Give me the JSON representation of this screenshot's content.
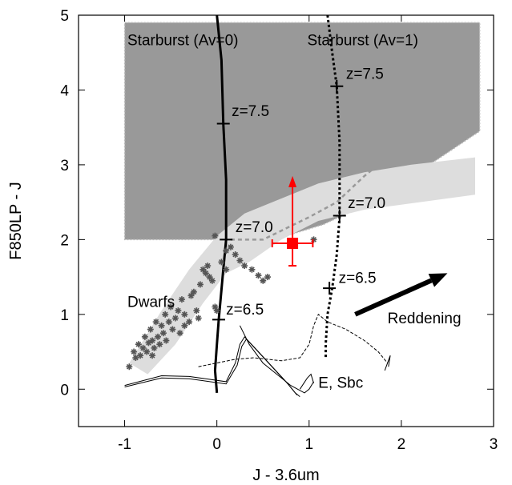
{
  "chart_data": {
    "type": "scatter",
    "xlabel": "J - 3.6um",
    "ylabel": "F850LP - J",
    "xlim": [
      -1.5,
      3.0
    ],
    "ylim": [
      -0.5,
      5.0
    ],
    "xticks": [
      -1,
      0,
      1,
      2,
      3
    ],
    "yticks": [
      0,
      1,
      2,
      3,
      4,
      5
    ],
    "grid": false,
    "regions": [
      {
        "name": "starburst-selection-region",
        "color": "#999999",
        "polygon": [
          [
            -1.0,
            4.9
          ],
          [
            2.85,
            4.9
          ],
          [
            2.85,
            3.45
          ],
          [
            2.0,
            2.75
          ],
          [
            1.5,
            2.4
          ],
          [
            1.15,
            2.2
          ],
          [
            0.75,
            2.05
          ],
          [
            0.45,
            2.0
          ],
          [
            -1.0,
            2.0
          ]
        ]
      },
      {
        "name": "dwarf-locus-band",
        "color": "#dddddd",
        "polygon": [
          [
            -0.95,
            0.35
          ],
          [
            -0.6,
            1.05
          ],
          [
            -0.3,
            1.6
          ],
          [
            0.0,
            2.05
          ],
          [
            0.3,
            2.35
          ],
          [
            0.7,
            2.55
          ],
          [
            1.1,
            2.75
          ],
          [
            1.6,
            2.9
          ],
          [
            2.1,
            3.0
          ],
          [
            2.8,
            3.1
          ],
          [
            2.8,
            2.6
          ],
          [
            2.2,
            2.5
          ],
          [
            1.6,
            2.4
          ],
          [
            1.1,
            2.25
          ],
          [
            0.7,
            2.0
          ],
          [
            0.35,
            1.7
          ],
          [
            0.1,
            1.55
          ],
          [
            -0.15,
            1.15
          ],
          [
            -0.45,
            0.6
          ],
          [
            -0.75,
            0.2
          ]
        ]
      }
    ],
    "series": [
      {
        "name": "Starburst (Av=0)",
        "style": "solid",
        "color": "#000000",
        "points": [
          [
            0.0,
            5.0
          ],
          [
            0.05,
            4.4
          ],
          [
            0.07,
            3.55
          ],
          [
            0.1,
            2.8
          ],
          [
            0.1,
            2.0
          ],
          [
            0.07,
            1.6
          ],
          [
            0.04,
            1.2
          ],
          [
            0.02,
            0.93
          ],
          [
            0.0,
            0.6
          ],
          [
            -0.02,
            0.25
          ],
          [
            0.0,
            -0.05
          ]
        ],
        "markers": [
          {
            "z": "z=7.5",
            "x": 0.07,
            "y": 3.55
          },
          {
            "z": "z=7.0",
            "x": 0.1,
            "y": 2.0
          },
          {
            "z": "z=6.5",
            "x": 0.02,
            "y": 0.93
          }
        ]
      },
      {
        "name": "Starburst (Av=1)",
        "style": "dotted",
        "color": "#000000",
        "points": [
          [
            1.2,
            5.0
          ],
          [
            1.25,
            4.5
          ],
          [
            1.3,
            4.05
          ],
          [
            1.33,
            3.3
          ],
          [
            1.33,
            2.3
          ],
          [
            1.3,
            1.8
          ],
          [
            1.25,
            1.35
          ],
          [
            1.2,
            1.0
          ],
          [
            1.18,
            0.6
          ],
          [
            1.18,
            0.4
          ]
        ],
        "markers": [
          {
            "z": "z=7.5",
            "x": 1.3,
            "y": 4.05
          },
          {
            "z": "z=7.0",
            "x": 1.33,
            "y": 2.32
          },
          {
            "z": "z=6.5",
            "x": 1.22,
            "y": 1.35
          }
        ]
      },
      {
        "name": "E, Sbc",
        "style": "thin",
        "color": "#000000",
        "tracks": [
          [
            [
              -1.0,
              0.05
            ],
            [
              -0.6,
              0.18
            ],
            [
              -0.3,
              0.17
            ],
            [
              0.1,
              0.1
            ],
            [
              0.2,
              0.35
            ],
            [
              0.25,
              0.6
            ],
            [
              0.3,
              0.7
            ],
            [
              0.45,
              0.5
            ],
            [
              0.6,
              0.3
            ],
            [
              0.75,
              0.1
            ],
            [
              0.85,
              -0.05
            ],
            [
              0.9,
              -0.1
            ]
          ],
          [
            [
              -1.0,
              0.03
            ],
            [
              -0.6,
              0.15
            ],
            [
              -0.3,
              0.14
            ],
            [
              0.1,
              0.07
            ],
            [
              0.22,
              0.32
            ],
            [
              0.27,
              0.57
            ],
            [
              0.32,
              0.67
            ],
            [
              0.47,
              0.47
            ],
            [
              0.62,
              0.27
            ],
            [
              0.77,
              0.07
            ],
            [
              0.87,
              -0.08
            ]
          ],
          [
            [
              0.25,
              0.85
            ],
            [
              0.35,
              0.6
            ],
            [
              0.5,
              0.35
            ],
            [
              0.65,
              0.2
            ],
            [
              0.8,
              0.05
            ],
            [
              0.95,
              -0.05
            ],
            [
              1.0,
              0.0
            ],
            [
              1.05,
              0.1
            ]
          ],
          [
            [
              -0.2,
              0.3
            ],
            [
              0.2,
              0.4
            ],
            [
              0.4,
              0.42
            ],
            [
              0.7,
              0.38
            ],
            [
              0.9,
              0.42
            ],
            [
              1.0,
              0.6
            ],
            [
              1.05,
              0.85
            ],
            [
              1.1,
              1.0
            ],
            [
              1.2,
              0.9
            ],
            [
              1.4,
              0.8
            ],
            [
              1.6,
              0.65
            ],
            [
              1.75,
              0.5
            ],
            [
              1.85,
              0.35
            ]
          ],
          [
            [
              0.9,
              0.0
            ],
            [
              0.98,
              0.15
            ],
            [
              1.02,
              0.2
            ],
            [
              1.05,
              0.08
            ]
          ],
          [
            [
              1.82,
              0.25
            ],
            [
              1.88,
              0.45
            ],
            [
              1.86,
              0.3
            ]
          ]
        ]
      }
    ],
    "dwarfs": [
      [
        -0.95,
        0.3
      ],
      [
        -0.9,
        0.5
      ],
      [
        -0.88,
        0.42
      ],
      [
        -0.85,
        0.6
      ],
      [
        -0.83,
        0.45
      ],
      [
        -0.8,
        0.55
      ],
      [
        -0.78,
        0.7
      ],
      [
        -0.76,
        0.5
      ],
      [
        -0.74,
        0.62
      ],
      [
        -0.72,
        0.8
      ],
      [
        -0.7,
        0.45
      ],
      [
        -0.7,
        0.65
      ],
      [
        -0.68,
        0.55
      ],
      [
        -0.66,
        0.9
      ],
      [
        -0.64,
        0.7
      ],
      [
        -0.62,
        0.6
      ],
      [
        -0.6,
        0.85
      ],
      [
        -0.58,
        0.75
      ],
      [
        -0.56,
        1.0
      ],
      [
        -0.55,
        0.65
      ],
      [
        -0.52,
        0.9
      ],
      [
        -0.5,
        1.1
      ],
      [
        -0.48,
        0.8
      ],
      [
        -0.45,
        0.95
      ],
      [
        -0.42,
        1.05
      ],
      [
        -0.4,
        0.75
      ],
      [
        -0.38,
        1.2
      ],
      [
        -0.35,
        0.85
      ],
      [
        -0.35,
        1.0
      ],
      [
        -0.3,
        0.9
      ],
      [
        -0.28,
        1.25
      ],
      [
        -0.25,
        1.3
      ],
      [
        -0.22,
        1.05
      ],
      [
        -0.2,
        0.95
      ],
      [
        -0.18,
        1.4
      ],
      [
        -0.15,
        1.6
      ],
      [
        -0.12,
        1.55
      ],
      [
        -0.1,
        1.65
      ],
      [
        -0.08,
        1.5
      ],
      [
        -0.05,
        1.45
      ],
      [
        -0.02,
        1.1
      ],
      [
        0.0,
        1.05
      ],
      [
        0.05,
        1.7
      ],
      [
        0.1,
        1.85
      ],
      [
        0.1,
        1.6
      ],
      [
        0.15,
        1.9
      ],
      [
        0.2,
        1.8
      ],
      [
        0.25,
        1.72
      ],
      [
        0.3,
        1.65
      ],
      [
        0.38,
        1.6
      ],
      [
        0.45,
        1.52
      ],
      [
        0.5,
        1.45
      ],
      [
        -0.02,
        2.05
      ],
      [
        1.05,
        2.0
      ],
      [
        0.55,
        1.5
      ]
    ],
    "measurement": {
      "name": "observed-object",
      "color": "#ff0000",
      "x": 0.82,
      "y": 1.95,
      "xerr": [
        0.22,
        0.22
      ],
      "yerr_low": 0.3,
      "lower_limit_arrow_to": 2.85
    },
    "reddening_vector": {
      "label": "Reddening",
      "from": [
        1.5,
        1.0
      ],
      "to": [
        2.5,
        1.55
      ]
    },
    "connector": {
      "style": "dashed",
      "color": "#999999",
      "points": [
        [
          0.15,
          2.0
        ],
        [
          0.5,
          2.0
        ],
        [
          1.0,
          2.3
        ],
        [
          1.3,
          2.5
        ],
        [
          1.6,
          2.85
        ],
        [
          1.8,
          3.05
        ]
      ]
    },
    "annotations": [
      {
        "name": "label-starburst-av0",
        "text": "Starburst (Av=0)",
        "x": -0.97,
        "y": 4.6
      },
      {
        "name": "label-starburst-av1",
        "text": "Starburst (Av=1)",
        "x": 0.98,
        "y": 4.6
      },
      {
        "name": "label-dwarfs",
        "text": "Dwarfs",
        "x": -0.97,
        "y": 1.1
      },
      {
        "name": "label-e-sbc",
        "text": "E, Sbc",
        "x": 1.1,
        "y": 0.02
      },
      {
        "name": "label-z75-av0",
        "text": "z=7.5",
        "x": 0.16,
        "y": 3.65
      },
      {
        "name": "label-z70-av0",
        "text": "z=7.0",
        "x": 0.2,
        "y": 2.1
      },
      {
        "name": "label-z65-av0",
        "text": "z=6.5",
        "x": 0.1,
        "y": 1.0
      },
      {
        "name": "label-z75-av1",
        "text": "z=7.5",
        "x": 1.4,
        "y": 4.15
      },
      {
        "name": "label-z70-av1",
        "text": "z=7.0",
        "x": 1.42,
        "y": 2.42
      },
      {
        "name": "label-z65-av1",
        "text": "z=6.5",
        "x": 1.32,
        "y": 1.42
      },
      {
        "name": "label-reddening",
        "text": "Reddening",
        "x": 1.85,
        "y": 0.88
      }
    ]
  }
}
